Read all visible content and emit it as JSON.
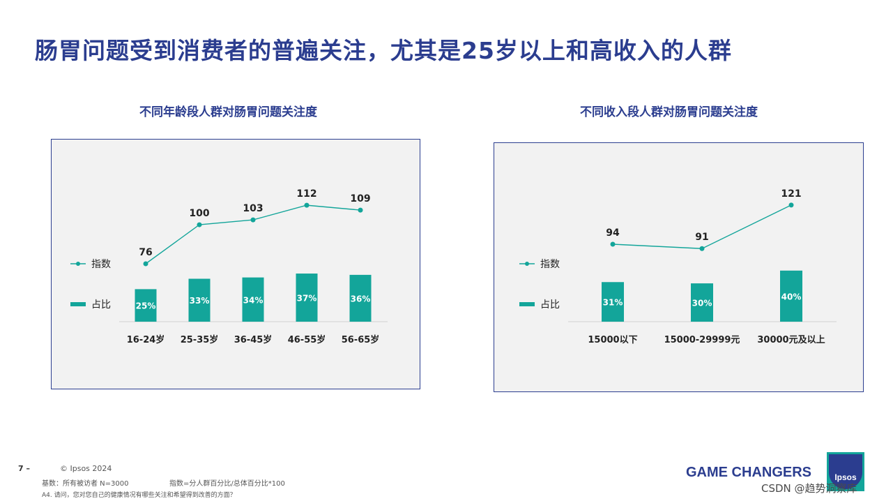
{
  "slide_title": "肠胃问题受到消费者的普遍关注，尤其是25岁以上和高收入的人群",
  "colors": {
    "title": "#2b3d8f",
    "teal": "#13a59a",
    "panel_bg": "#f2f2f2",
    "border": "#2b3d8f"
  },
  "chart_data": [
    {
      "type": "bar",
      "title": "不同年龄段人群对肠胃问题关注度",
      "categories": [
        "16-24岁",
        "25-35岁",
        "36-45岁",
        "46-55岁",
        "56-65岁"
      ],
      "series": [
        {
          "name": "指数",
          "type": "line",
          "values": [
            76,
            100,
            103,
            112,
            109
          ]
        },
        {
          "name": "占比",
          "type": "bar",
          "values": [
            25,
            33,
            34,
            37,
            36
          ],
          "labels": [
            "25%",
            "33%",
            "34%",
            "37%",
            "36%"
          ]
        }
      ],
      "legend": "left"
    },
    {
      "type": "bar",
      "title": "不同收入段人群对肠胃问题关注度",
      "categories": [
        "15000以下",
        "15000-29999元",
        "30000元及以上"
      ],
      "series": [
        {
          "name": "指数",
          "type": "line",
          "values": [
            94,
            91,
            121
          ]
        },
        {
          "name": "占比",
          "type": "bar",
          "values": [
            31,
            30,
            40
          ],
          "labels": [
            "31%",
            "30%",
            "40%"
          ]
        }
      ],
      "legend": "left"
    }
  ],
  "footer": {
    "page_number": "7 –",
    "copyright": "© Ipsos 2024",
    "base_note": "基数：所有被访者  N=3000",
    "index_note": "指数=分人群百分比/总体百分比*100",
    "question_note": "A4. 请问，您对您自己的健康情况有哪些关注和希望得到改善的方面？"
  },
  "brand": {
    "tagline": "GAME CHANGERS",
    "logo_text": "Ipsos",
    "logo_icon": "ipsos-logo-icon"
  },
  "watermark": "CSDN @趋势洞察库"
}
